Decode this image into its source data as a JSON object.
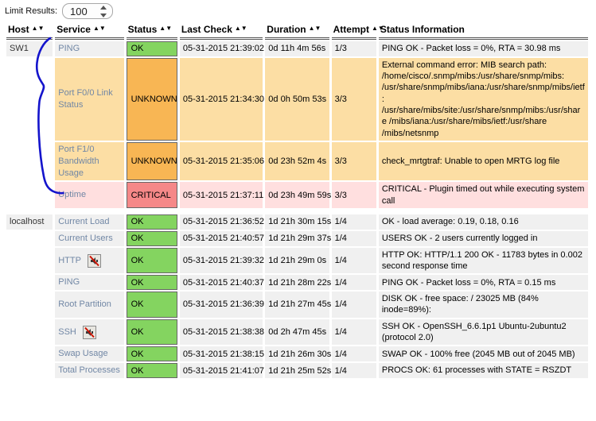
{
  "limit_bar": {
    "label": "Limit Results:",
    "value": "100"
  },
  "table": {
    "headers": [
      {
        "label": "Host",
        "sortable": true
      },
      {
        "label": "Service",
        "sortable": true
      },
      {
        "label": "Status",
        "sortable": true
      },
      {
        "label": "Last Check",
        "sortable": true
      },
      {
        "label": "Duration",
        "sortable": true
      },
      {
        "label": "Attempt",
        "sortable": true
      },
      {
        "label": "Status Information",
        "sortable": false
      }
    ],
    "sort_arrows": "▲▼",
    "rows": [
      {
        "host": "SW1",
        "service": "PING",
        "icon": "",
        "status": "OK",
        "last_check": "05-31-2015 21:39:02",
        "duration": "0d 11h 4m 56s",
        "attempt": "1/3",
        "info": "PING OK - Packet loss = 0%, RTA = 30.98 ms"
      },
      {
        "host": "",
        "service": "Port F0/0 Link Status",
        "icon": "",
        "status": "UNKNOWN",
        "last_check": "05-31-2015 21:34:30",
        "duration": "0d 0h 50m 53s",
        "attempt": "3/3",
        "info": "External command error: MIB search path: /home/cisco/.snmp/mibs:/usr/share/snmp/mibs: /usr/share/snmp/mibs/iana:/usr/share/snmp/mibs/ietf: /usr/share/mibs/site:/usr/share/snmp/mibs:/usr/share /mibs/iana:/usr/share/mibs/ietf:/usr/share /mibs/netsnmp"
      },
      {
        "host": "",
        "service": "Port F1/0 Bandwidth Usage",
        "icon": "",
        "status": "UNKNOWN",
        "last_check": "05-31-2015 21:35:06",
        "duration": "0d 23h 52m 4s",
        "attempt": "3/3",
        "info": "check_mrtgtraf: Unable to open MRTG log file"
      },
      {
        "host": "",
        "service": "Uptime",
        "icon": "",
        "status": "CRITICAL",
        "last_check": "05-31-2015 21:37:11",
        "duration": "0d 23h 49m 59s",
        "attempt": "3/3",
        "info": "CRITICAL - Plugin timed out while executing system call"
      },
      {
        "host": "localhost",
        "service": "Current Load",
        "icon": "",
        "status": "OK",
        "last_check": "05-31-2015 21:36:52",
        "duration": "1d 21h 30m 15s",
        "attempt": "1/4",
        "info": "OK - load average: 0.19, 0.18, 0.16",
        "group_start": true
      },
      {
        "host": "",
        "service": "Current Users",
        "icon": "",
        "status": "OK",
        "last_check": "05-31-2015 21:40:57",
        "duration": "1d 21h 29m 37s",
        "attempt": "1/4",
        "info": "USERS OK - 2 users currently logged in"
      },
      {
        "host": "",
        "service": "HTTP",
        "icon": "notifications-disabled",
        "status": "OK",
        "last_check": "05-31-2015 21:39:32",
        "duration": "1d 21h 29m 0s",
        "attempt": "1/4",
        "info": "HTTP OK: HTTP/1.1 200 OK - 11783 bytes in 0.002 second response time"
      },
      {
        "host": "",
        "service": "PING",
        "icon": "",
        "status": "OK",
        "last_check": "05-31-2015 21:40:37",
        "duration": "1d 21h 28m 22s",
        "attempt": "1/4",
        "info": "PING OK - Packet loss = 0%, RTA = 0.15 ms"
      },
      {
        "host": "",
        "service": "Root Partition",
        "icon": "",
        "status": "OK",
        "last_check": "05-31-2015 21:36:39",
        "duration": "1d 21h 27m 45s",
        "attempt": "1/4",
        "info": "DISK OK - free space: / 23025 MB (84% inode=89%):"
      },
      {
        "host": "",
        "service": "SSH",
        "icon": "notifications-disabled",
        "status": "OK",
        "last_check": "05-31-2015 21:38:38",
        "duration": "0d 2h 47m 45s",
        "attempt": "1/4",
        "info": "SSH OK - OpenSSH_6.6.1p1 Ubuntu-2ubuntu2 (protocol 2.0)"
      },
      {
        "host": "",
        "service": "Swap Usage",
        "icon": "",
        "status": "OK",
        "last_check": "05-31-2015 21:38:15",
        "duration": "1d 21h 26m 30s",
        "attempt": "1/4",
        "info": "SWAP OK - 100% free (2045 MB out of 2045 MB)"
      },
      {
        "host": "",
        "service": "Total Processes",
        "icon": "",
        "status": "OK",
        "last_check": "05-31-2015 21:41:07",
        "duration": "1d 21h 25m 52s",
        "attempt": "1/4",
        "info": "PROCS OK: 61 processes with STATE = RSZDT"
      }
    ]
  },
  "colors": {
    "ok_badge": "#84d460",
    "ok_row": "#f0f0f0",
    "unknown_badge": "#f8b654",
    "unknown_row": "#fcdea4",
    "critical_badge": "#f58888",
    "critical_row": "#ffdfdf",
    "service_link": "#7187a5",
    "annotation": "#1414cc"
  }
}
